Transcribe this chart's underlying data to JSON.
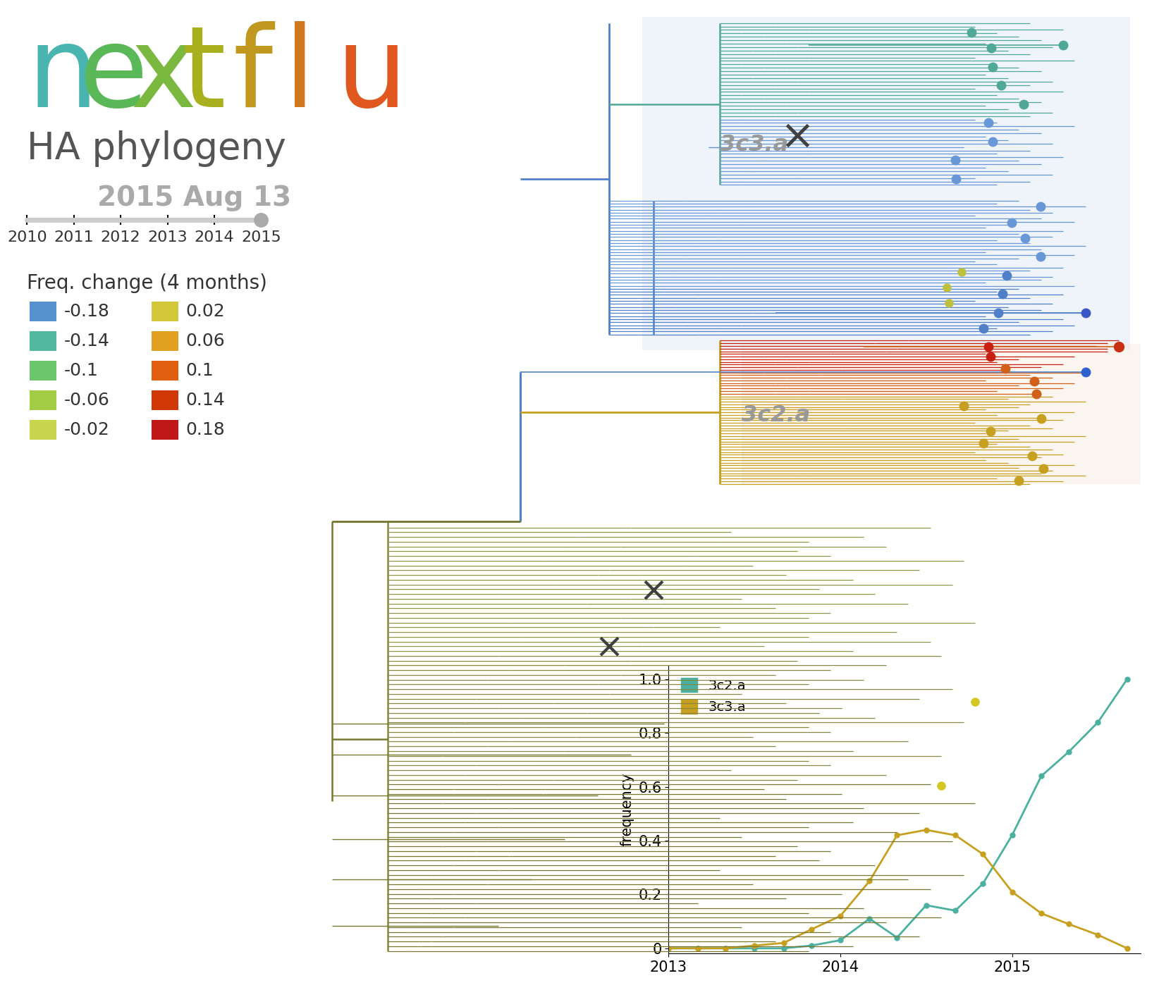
{
  "subtitle": "HA phylogeny",
  "date_label": "2015 Aug 13",
  "timeline_ticks": [
    "2010",
    "2011",
    "2012",
    "2013",
    "2014",
    "2015"
  ],
  "freq_change_label": "Freq. change (4 months)",
  "nextflu_letters": [
    {
      "ch": "n",
      "color": "#4ab5b0"
    },
    {
      "ch": "e",
      "color": "#5ab858"
    },
    {
      "ch": "x",
      "color": "#7ab840"
    },
    {
      "ch": "t",
      "color": "#a8b020"
    },
    {
      "ch": "f",
      "color": "#c09820"
    },
    {
      "ch": "l",
      "color": "#d07820"
    },
    {
      "ch": "u",
      "color": "#e05820"
    }
  ],
  "legend_left": [
    {
      "value": "-0.18",
      "color": "#5591cf"
    },
    {
      "value": "-0.14",
      "color": "#52b8a0"
    },
    {
      "value": "-0.1",
      "color": "#6bc76b"
    },
    {
      "value": "-0.06",
      "color": "#a3cc45"
    },
    {
      "value": "-0.02",
      "color": "#c8d44e"
    }
  ],
  "legend_right": [
    {
      "value": "0.02",
      "color": "#d4c83a"
    },
    {
      "value": "0.06",
      "color": "#e0a020"
    },
    {
      "value": "0.1",
      "color": "#e06010"
    },
    {
      "value": "0.14",
      "color": "#d03808"
    },
    {
      "value": "0.18",
      "color": "#c01818"
    }
  ],
  "freq_plot": {
    "x_3c2a": [
      2013.0,
      2013.17,
      2013.33,
      2013.5,
      2013.67,
      2013.83,
      2014.0,
      2014.17,
      2014.33,
      2014.5,
      2014.67,
      2014.83,
      2015.0,
      2015.17,
      2015.33,
      2015.5,
      2015.67
    ],
    "y_3c2a": [
      0.0,
      0.0,
      0.0,
      0.0,
      0.0,
      0.01,
      0.03,
      0.11,
      0.04,
      0.16,
      0.14,
      0.24,
      0.42,
      0.64,
      0.73,
      0.84,
      1.0
    ],
    "x_3c3a": [
      2013.0,
      2013.17,
      2013.33,
      2013.5,
      2013.67,
      2013.83,
      2014.0,
      2014.17,
      2014.33,
      2014.5,
      2014.67,
      2014.83,
      2015.0,
      2015.17,
      2015.33,
      2015.5,
      2015.67
    ],
    "y_3c3a": [
      0.0,
      0.0,
      0.0,
      0.01,
      0.02,
      0.07,
      0.12,
      0.25,
      0.42,
      0.44,
      0.42,
      0.35,
      0.21,
      0.13,
      0.09,
      0.05,
      0.0
    ],
    "color_3c2a": "#4ab0a0",
    "color_3c3a": "#c8a020",
    "ylabel": "frequency",
    "xlim": [
      2013.0,
      2015.75
    ],
    "ylim": [
      -0.02,
      1.05
    ],
    "xticks": [
      2013,
      2014,
      2015
    ],
    "yticks": [
      0,
      0.2,
      0.4,
      0.6,
      0.8,
      1.0
    ]
  },
  "background_color": "#ffffff",
  "c_blue": "#5080c8",
  "c_teal": "#50a898",
  "c_ltblue": "#6898d8",
  "c_olive": "#909848",
  "c_darkolive": "#787830",
  "c_gold": "#c8a020",
  "c_orange": "#d06018",
  "c_red": "#c82010",
  "c_salmon": "#d07060",
  "c_ygreen": "#a8b030",
  "c_ltygreen": "#c0c040"
}
